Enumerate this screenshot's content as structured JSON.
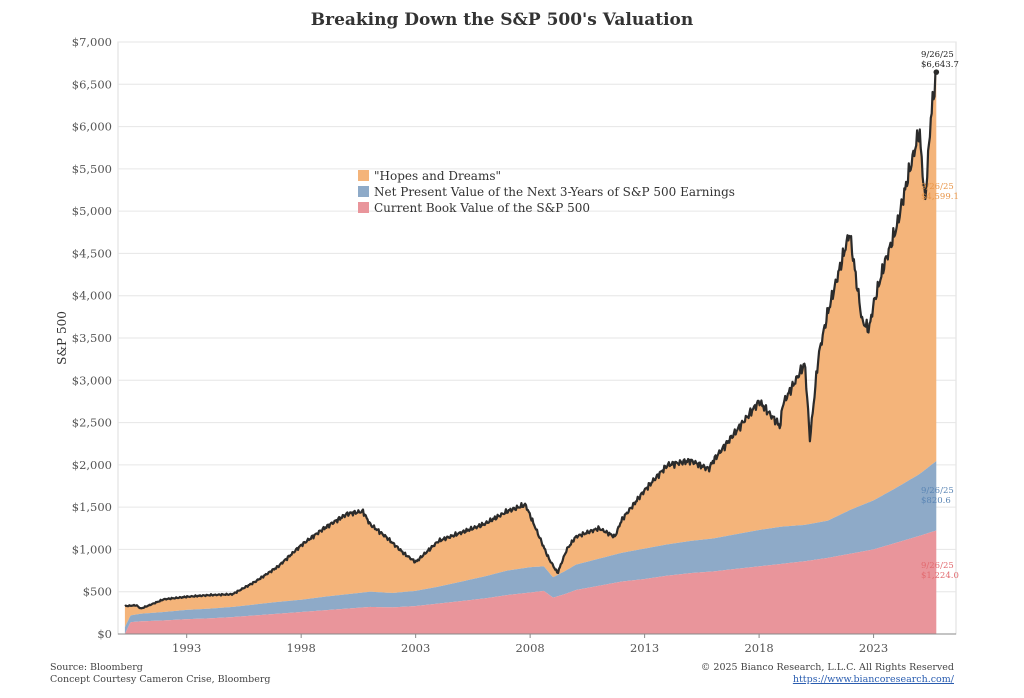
{
  "chart_data": {
    "type": "area",
    "title": "Breaking Down the S&P 500's Valuation",
    "ylabel": "S&P 500",
    "xlabel": "",
    "xlim": [
      1990.0,
      2026.6
    ],
    "ylim": [
      0,
      7000
    ],
    "y_ticks": [
      0,
      500,
      1000,
      1500,
      2000,
      2500,
      3000,
      3500,
      4000,
      4500,
      5000,
      5500,
      6000,
      6500,
      7000
    ],
    "y_tick_labels": [
      "$0",
      "$500",
      "$1,000",
      "$1,500",
      "$2,000",
      "$2,500",
      "$3,000",
      "$3,500",
      "$4,000",
      "$4,500",
      "$5,000",
      "$5,500",
      "$6,000",
      "$6,500",
      "$7,000"
    ],
    "x_ticks": [
      1993,
      1998,
      2003,
      2008,
      2013,
      2018,
      2023
    ],
    "grid": "horizontal",
    "legend_position": "upper-center",
    "colors": {
      "hopes": "#f4b47a",
      "npv": "#8eaac8",
      "book": "#e9959b",
      "index": "#2b2b2b"
    },
    "legend": [
      {
        "name": "\"Hopes and Dreams\"",
        "color": "#f4b47a"
      },
      {
        "name": "Net Present Value of the Next 3-Years of S&P 500 Earnings",
        "color": "#8eaac8"
      },
      {
        "name": "Current Book Value of the S&P 500",
        "color": "#e9959b"
      }
    ],
    "series": [
      {
        "name": "Current Book Value of the S&P 500",
        "x": [
          1990.3,
          1990.55,
          1991,
          1992,
          1993,
          1994,
          1995,
          1996,
          1997,
          1998,
          1999,
          2000,
          2001,
          2002,
          2003,
          2004,
          2005,
          2006,
          2007,
          2008,
          2008.6,
          2009,
          2009.5,
          2010,
          2011,
          2012,
          2013,
          2014,
          2015,
          2016,
          2017,
          2018,
          2019,
          2020,
          2021,
          2022,
          2023,
          2024,
          2025,
          2025.74
        ],
        "y": [
          0,
          140,
          150,
          160,
          175,
          185,
          200,
          220,
          240,
          260,
          280,
          300,
          320,
          315,
          330,
          360,
          390,
          420,
          460,
          490,
          510,
          430,
          470,
          520,
          570,
          620,
          650,
          690,
          720,
          740,
          770,
          800,
          830,
          860,
          900,
          950,
          1000,
          1080,
          1160,
          1224.0
        ]
      },
      {
        "name": "Net Present Value of the Next 3-Years of S&P 500 Earnings",
        "x": [
          1990.3,
          1990.55,
          1991,
          1992,
          1993,
          1994,
          1995,
          1996,
          1997,
          1998,
          1999,
          2000,
          2001,
          2002,
          2003,
          2004,
          2005,
          2006,
          2007,
          2008,
          2008.6,
          2009,
          2009.5,
          2010,
          2011,
          2012,
          2013,
          2014,
          2015,
          2016,
          2017,
          2018,
          2019,
          2020,
          2021,
          2022,
          2023,
          2024,
          2025,
          2025.74
        ],
        "y": [
          80,
          80,
          90,
          100,
          110,
          115,
          120,
          130,
          140,
          145,
          160,
          170,
          180,
          170,
          180,
          200,
          230,
          260,
          290,
          300,
          290,
          240,
          270,
          300,
          320,
          340,
          360,
          370,
          380,
          390,
          410,
          430,
          440,
          430,
          440,
          520,
          580,
          650,
          730,
          820.6
        ]
      },
      {
        "name": "S&P 500",
        "x": [
          1990.3,
          1990.8,
          1991,
          1992,
          1993,
          1994,
          1995,
          1996,
          1997,
          1998,
          1999,
          2000,
          2000.7,
          2001,
          2001.7,
          2002.5,
          2003,
          2004,
          2005,
          2006,
          2007,
          2007.8,
          2008,
          2008.8,
          2009.2,
          2009.6,
          2010,
          2011,
          2011.7,
          2012,
          2013,
          2014,
          2015,
          2015.8,
          2016,
          2017,
          2018,
          2018.95,
          2019,
          2020,
          2020.22,
          2020.6,
          2021,
          2021.95,
          2022.5,
          2022.8,
          2023,
          2023.5,
          2024,
          2024.5,
          2025,
          2025.25,
          2025.5,
          2025.74
        ],
        "y": [
          330,
          340,
          300,
          410,
          440,
          460,
          470,
          620,
          800,
          1050,
          1250,
          1420,
          1450,
          1300,
          1150,
          950,
          850,
          1100,
          1200,
          1300,
          1450,
          1530,
          1400,
          900,
          720,
          1000,
          1150,
          1250,
          1150,
          1350,
          1700,
          2000,
          2050,
          1950,
          2050,
          2400,
          2750,
          2450,
          2700,
          3200,
          2300,
          3300,
          3800,
          4750,
          3700,
          3600,
          3900,
          4400,
          4800,
          5400,
          5950,
          5100,
          6100,
          6643.7
        ]
      }
    ],
    "annotations": [
      {
        "date": "9/26/25",
        "value": "$6,643.7",
        "color": "#222222"
      },
      {
        "date": "9/26/25",
        "value": "$4,599.1",
        "color": "#e8964a"
      },
      {
        "date": "9/26/25",
        "value": "$820.6",
        "color": "#5b86b5"
      },
      {
        "date": "9/26/25",
        "value": "$1,224.0",
        "color": "#e26a6f"
      }
    ]
  },
  "footer": {
    "source": "Source: Bloomberg",
    "concept": "Concept Courtesy Cameron Crise, Bloomberg",
    "copyright": "© 2025 Bianco Research, L.L.C. All Rights Reserved",
    "url": "https://www.biancoresearch.com/"
  }
}
